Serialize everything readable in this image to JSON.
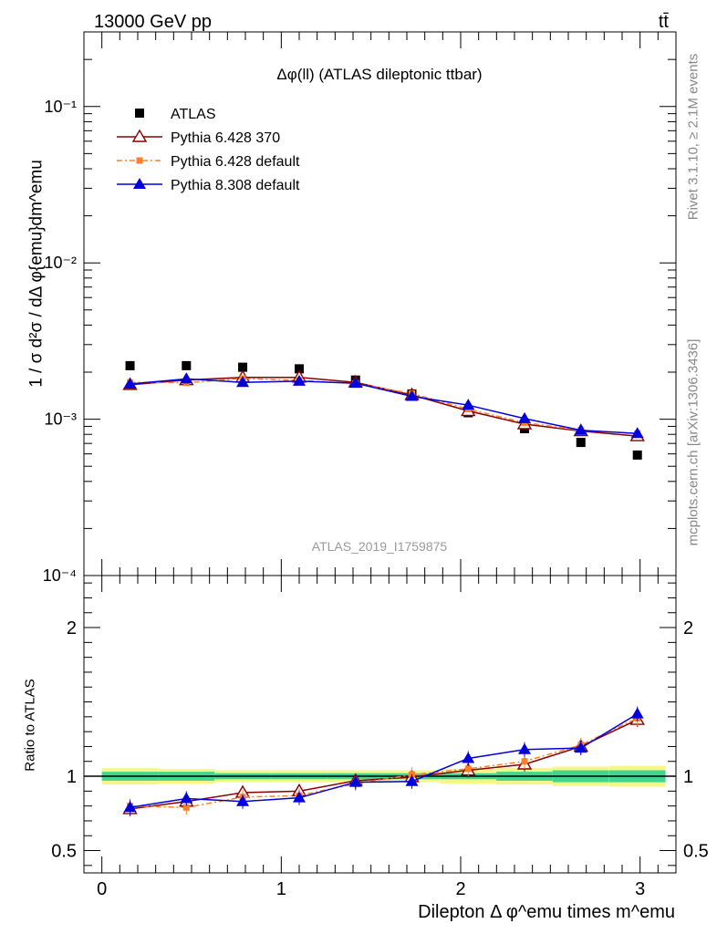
{
  "header": {
    "left": "13000 GeV pp",
    "right": "tt̄"
  },
  "side": {
    "rivet": "Rivet 3.1.10, ≥ 2.1M events",
    "mcplots": "mcplots.cern.ch [arXiv:1306.3436]"
  },
  "colors": {
    "atlas": "#000000",
    "p6_370": "#8b0000",
    "p6_default": "#ff7f27",
    "p8": "#0000dd",
    "band_inner": "#3fd68f",
    "band_outer": "#f5f58a"
  },
  "chart_data": [
    {
      "type": "scatter",
      "title": "Δφ(ll) (ATLAS dileptonic ttbar)",
      "watermark": "ATLAS_2019_I1759875",
      "ylabel": "1 / σ  d²σ / dΔ φ{emu}dm^emu",
      "xlim": [
        -0.1,
        3.2
      ],
      "ylim": [
        0.0001,
        0.3
      ],
      "yscale": "log",
      "y_ticks": [
        "10⁻⁴",
        "10⁻³",
        "10⁻²",
        "10⁻¹"
      ],
      "legend_position": "top-left",
      "x": [
        0.157,
        0.471,
        0.785,
        1.1,
        1.414,
        1.728,
        2.042,
        2.356,
        2.67,
        2.985
      ],
      "series": [
        {
          "name": "ATLAS",
          "values": [
            0.0022,
            0.0022,
            0.00215,
            0.0021,
            0.00178,
            0.00145,
            0.0011,
            0.00087,
            0.00071,
            0.00059
          ]
        },
        {
          "name": "Pythia 6.428 370",
          "values": [
            0.00166,
            0.00178,
            0.00185,
            0.00185,
            0.00172,
            0.00143,
            0.00113,
            0.00093,
            0.00084,
            0.00078
          ]
        },
        {
          "name": "Pythia 6.428 default",
          "values": [
            0.00172,
            0.00171,
            0.00182,
            0.00177,
            0.00169,
            0.00146,
            0.00116,
            0.00095,
            0.00085,
            0.00081
          ]
        },
        {
          "name": "Pythia 8.308 default",
          "values": [
            0.00168,
            0.00181,
            0.00172,
            0.00175,
            0.0017,
            0.0014,
            0.00123,
            0.00101,
            0.00085,
            0.00081
          ]
        }
      ]
    },
    {
      "type": "line",
      "ylabel": "Ratio to ATLAS",
      "xlabel": "Dilepton Δ φ^emu times m^emu",
      "xlim": [
        -0.1,
        3.2
      ],
      "ylim": [
        0.35,
        2.35
      ],
      "x_ticks": [
        "0",
        "1",
        "2",
        "3"
      ],
      "y_ticks": [
        "0.5",
        "1",
        "2"
      ],
      "x": [
        0.157,
        0.471,
        0.785,
        1.1,
        1.414,
        1.728,
        2.042,
        2.356,
        2.67,
        2.985
      ],
      "band_inner_halfwidth": [
        0.03,
        0.03,
        0.02,
        0.02,
        0.02,
        0.02,
        0.02,
        0.03,
        0.04,
        0.04
      ],
      "band_outer_halfwidth": [
        0.055,
        0.05,
        0.04,
        0.04,
        0.04,
        0.04,
        0.05,
        0.055,
        0.065,
        0.07
      ],
      "series": [
        {
          "name": "Pythia 6.428 370",
          "values": [
            0.78,
            0.83,
            0.89,
            0.9,
            0.97,
            0.995,
            1.04,
            1.08,
            1.2,
            1.38
          ]
        },
        {
          "name": "Pythia 6.428 default",
          "values": [
            0.8,
            0.79,
            0.86,
            0.87,
            0.95,
            1.01,
            1.05,
            1.1,
            1.21,
            1.39
          ]
        },
        {
          "name": "Pythia 8.308 default",
          "values": [
            0.79,
            0.85,
            0.83,
            0.855,
            0.96,
            0.965,
            1.12,
            1.18,
            1.19,
            1.42
          ]
        }
      ]
    }
  ]
}
